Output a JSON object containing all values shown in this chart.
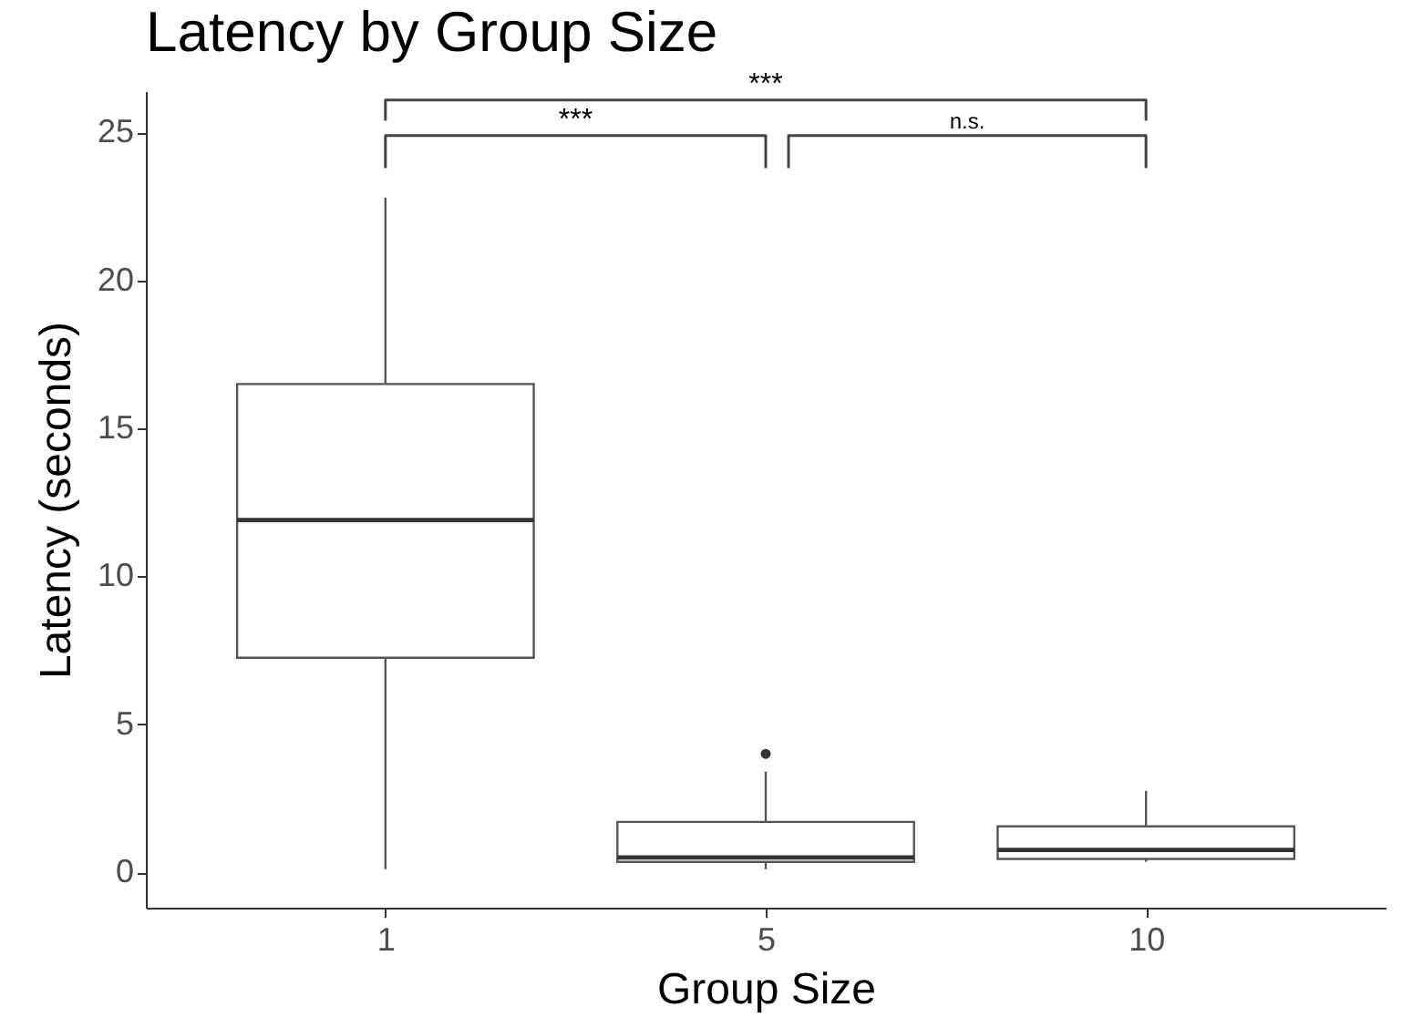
{
  "chart_data": {
    "type": "box",
    "title": "Latency by Group Size",
    "xlabel": "Group Size",
    "ylabel": "Latency (seconds)",
    "categories": [
      "1",
      "5",
      "10"
    ],
    "boxes": [
      {
        "low": 0.1,
        "q1": 7.25,
        "median": 11.9,
        "q3": 16.5,
        "high": 22.8
      },
      {
        "low": 0.1,
        "q1": 0.35,
        "median": 0.5,
        "q3": 1.7,
        "high": 3.4,
        "outliers": [
          4.0
        ]
      },
      {
        "low": 0.35,
        "q1": 0.45,
        "median": 0.75,
        "q3": 1.55,
        "high": 2.75
      }
    ],
    "ylim": [
      -1.2,
      26.4
    ],
    "yticks": [
      0,
      5,
      10,
      15,
      20,
      25
    ],
    "grid": false,
    "annotations": [
      "***",
      "***",
      "n.s."
    ]
  }
}
